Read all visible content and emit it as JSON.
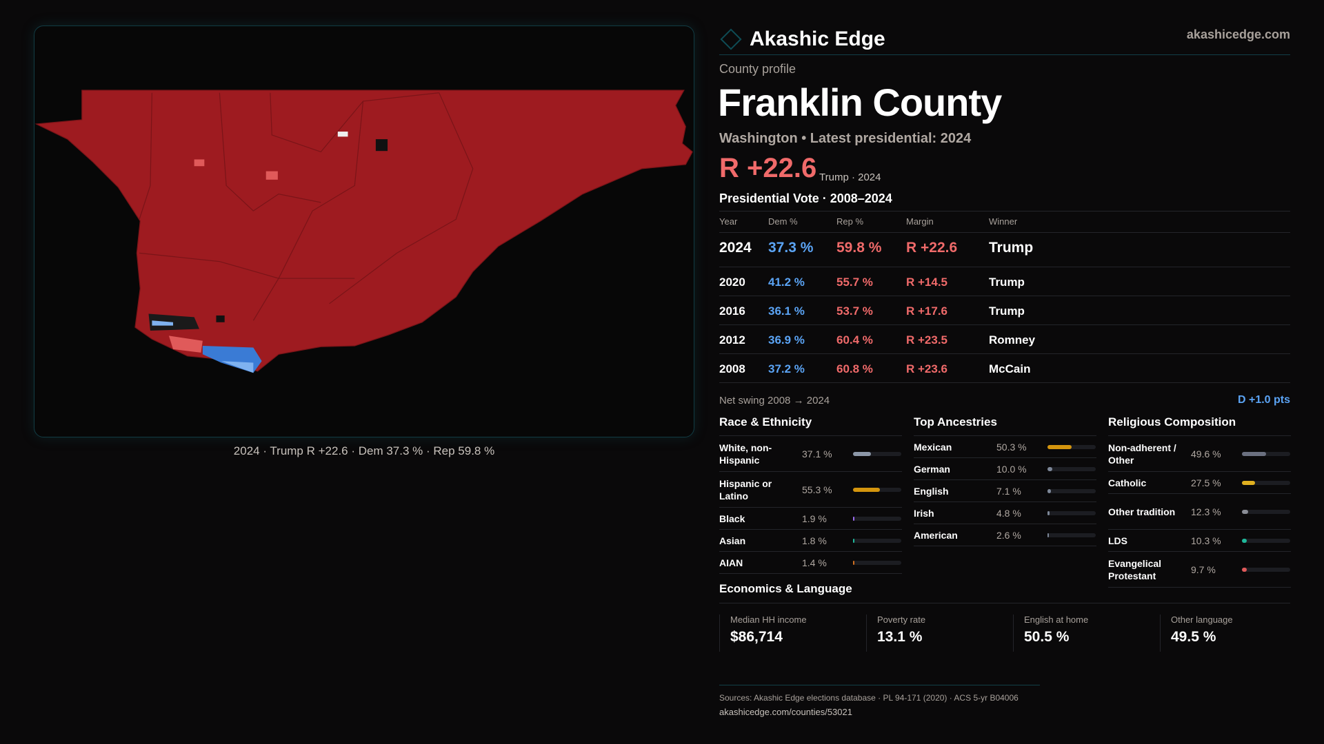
{
  "brand": {
    "name": "Akashic Edge",
    "site": "akashicedge.com"
  },
  "map": {
    "caption": "2024 · Trump R +22.6 · Dem 37.3 % · Rep 59.8 %",
    "colors": {
      "rep": "#9e1b20",
      "rep_light": "#e05a5a",
      "dem": "#3a7bd5",
      "dem_light": "#7fb2f0"
    }
  },
  "profile": {
    "kicker": "County profile",
    "title": "Franklin County",
    "subtitle": "Washington • Latest presidential: 2024",
    "margin": "R +22.6",
    "margin_sub": "Trump · 2024"
  },
  "presidential": {
    "title": "Presidential Vote · 2008–2024",
    "headers": [
      "Year",
      "Dem %",
      "Rep %",
      "Margin",
      "Winner"
    ],
    "rows": [
      [
        "2024",
        "37.3 %",
        "59.8 %",
        "R +22.6",
        "Trump"
      ],
      [
        "2020",
        "41.2 %",
        "55.7 %",
        "R +14.5",
        "Trump"
      ],
      [
        "2016",
        "36.1 %",
        "53.7 %",
        "R +17.6",
        "Trump"
      ],
      [
        "2012",
        "36.9 %",
        "60.4 %",
        "R +23.5",
        "Romney"
      ],
      [
        "2008",
        "37.2 %",
        "60.8 %",
        "R +23.6",
        "McCain"
      ]
    ],
    "swing_label": "Net swing 2008 → 2024",
    "swing_value": "D +1.0 pts"
  },
  "sections": [
    {
      "title": "Race & Ethnicity",
      "items": [
        {
          "label": "White, non-Hispanic",
          "value": "37.1 %",
          "pct": 37.1,
          "color": "#8c97a8"
        },
        {
          "label": "Hispanic or Latino",
          "value": "55.3 %",
          "pct": 55.3,
          "color": "#d4950e"
        },
        {
          "label": "Black",
          "value": "1.9 %",
          "pct": 1.9,
          "color": "#9b6cf0"
        },
        {
          "label": "Asian",
          "value": "1.8 %",
          "pct": 1.8,
          "color": "#1fb89a"
        },
        {
          "label": "AIAN",
          "value": "1.4 %",
          "pct": 1.4,
          "color": "#d07020"
        }
      ]
    },
    {
      "title": "Top Ancestries",
      "items": [
        {
          "label": "Mexican",
          "value": "50.3 %",
          "pct": 50.3,
          "color": "#d4950e"
        },
        {
          "label": "German",
          "value": "10.0 %",
          "pct": 10.0,
          "color": "#7d8798"
        },
        {
          "label": "English",
          "value": "7.1 %",
          "pct": 7.1,
          "color": "#7d8798"
        },
        {
          "label": "Irish",
          "value": "4.8 %",
          "pct": 4.8,
          "color": "#7d8798"
        },
        {
          "label": "American",
          "value": "2.6 %",
          "pct": 2.6,
          "color": "#7d8798"
        }
      ]
    },
    {
      "title": "Religious Composition",
      "items": [
        {
          "label": "Non-adherent / Other",
          "value": "49.6 %",
          "pct": 49.6,
          "color": "#6b7080"
        },
        {
          "label": "Catholic",
          "value": "27.5 %",
          "pct": 27.5,
          "color": "#e0b020"
        },
        {
          "label": "Other tradition",
          "value": "12.3 %",
          "pct": 12.3,
          "color": "#8a8d96"
        },
        {
          "label": "LDS",
          "value": "10.3 %",
          "pct": 10.3,
          "color": "#1fb89a"
        },
        {
          "label": "Evangelical Protestant",
          "value": "9.7 %",
          "pct": 9.7,
          "color": "#e05a5a"
        }
      ]
    }
  ],
  "economics": {
    "title": "Economics & Language",
    "stats": [
      {
        "label": "Median HH income",
        "value": "$86,714"
      },
      {
        "label": "Poverty rate",
        "value": "13.1 %"
      },
      {
        "label": "English at home",
        "value": "50.5 %"
      },
      {
        "label": "Other language",
        "value": "49.5 %"
      }
    ]
  },
  "footer": {
    "sources": "Sources: Akashic Edge elections database · PL 94-171 (2020) · ACS 5-yr B04006",
    "url": "akashicedge.com/counties/53021"
  }
}
